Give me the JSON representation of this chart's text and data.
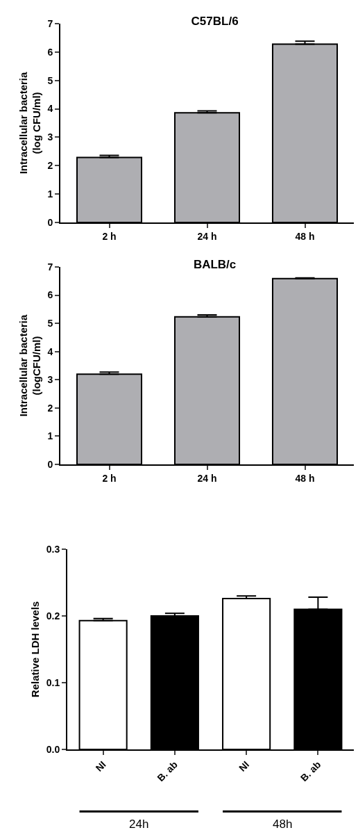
{
  "chart_data": [
    {
      "type": "bar",
      "title": "C57BL/6",
      "ylabel": "Intracellular bacteria\n(log CFU/ml)",
      "categories": [
        "2 h",
        "24 h",
        "48 h"
      ],
      "values": [
        2.29,
        3.86,
        6.28
      ],
      "errors": [
        [
          2.29,
          2.36
        ],
        [
          3.86,
          3.93
        ],
        [
          6.28,
          6.38
        ]
      ],
      "color": "#aeaeb2",
      "ylim": [
        0,
        7
      ],
      "yticks": [
        0,
        1,
        2,
        3,
        4,
        5,
        6,
        7
      ]
    },
    {
      "type": "bar",
      "title": "BALB/c",
      "ylabel": "Intracellular bacteria\n(logCFU/ml)",
      "categories": [
        "2 h",
        "24 h",
        "48 h"
      ],
      "values": [
        3.2,
        5.23,
        6.59
      ],
      "errors": [
        [
          3.2,
          3.27
        ],
        [
          5.23,
          5.3
        ],
        [
          6.59,
          6.61
        ]
      ],
      "color": "#aeaeb2",
      "ylim": [
        0,
        7
      ],
      "yticks": [
        0,
        1,
        2,
        3,
        4,
        5,
        6,
        7
      ]
    },
    {
      "type": "bar",
      "ylabel": "Relative LDH levels",
      "categories": [
        "NI",
        "B. ab",
        "NI",
        "B. ab"
      ],
      "values": [
        0.193,
        0.2,
        0.226,
        0.21
      ],
      "errors": [
        [
          0.193,
          0.196
        ],
        [
          0.2,
          0.204
        ],
        [
          0.226,
          0.23
        ],
        [
          0.21,
          0.228
        ]
      ],
      "colors": [
        "#ffffff",
        "#000000",
        "#ffffff",
        "#000000"
      ],
      "ylim": [
        0,
        0.3
      ],
      "yticks": [
        {
          "value": 0,
          "label": "0.0"
        },
        0.1,
        0.2,
        0.3
      ],
      "annotations": [
        "24h",
        "48h"
      ]
    }
  ]
}
